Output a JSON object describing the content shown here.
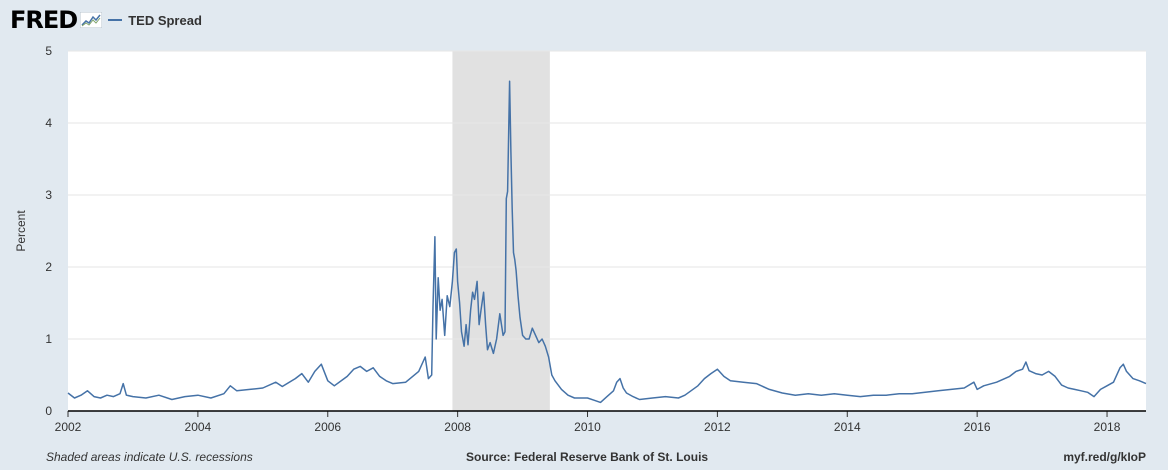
{
  "brand": {
    "name": "FRED",
    "icon": "chart-line-icon"
  },
  "legend": {
    "label": "TED Spread",
    "color": "#4572a7"
  },
  "footer": {
    "left": "Shaded areas indicate U.S. recessions",
    "center": "Source: Federal Reserve Bank of St. Louis",
    "right": "myf.red/g/kIoP"
  },
  "chart_data": {
    "type": "line",
    "ylabel": "Percent",
    "xlim": [
      2002.0,
      2018.6
    ],
    "ylim": [
      0,
      5
    ],
    "xticks": [
      "2002",
      "2004",
      "2006",
      "2008",
      "2010",
      "2012",
      "2014",
      "2016",
      "2018"
    ],
    "yticks": [
      "0",
      "1",
      "2",
      "3",
      "4",
      "5"
    ],
    "grid": true,
    "recessions": [
      [
        2007.92,
        2009.42
      ]
    ],
    "series": [
      {
        "name": "TED Spread",
        "color": "#4572a7",
        "points": [
          [
            2002.0,
            0.25
          ],
          [
            2002.1,
            0.18
          ],
          [
            2002.2,
            0.22
          ],
          [
            2002.3,
            0.28
          ],
          [
            2002.4,
            0.2
          ],
          [
            2002.5,
            0.18
          ],
          [
            2002.6,
            0.22
          ],
          [
            2002.7,
            0.2
          ],
          [
            2002.8,
            0.24
          ],
          [
            2002.85,
            0.38
          ],
          [
            2002.9,
            0.22
          ],
          [
            2003.0,
            0.2
          ],
          [
            2003.2,
            0.18
          ],
          [
            2003.4,
            0.22
          ],
          [
            2003.6,
            0.16
          ],
          [
            2003.8,
            0.2
          ],
          [
            2004.0,
            0.22
          ],
          [
            2004.2,
            0.18
          ],
          [
            2004.4,
            0.24
          ],
          [
            2004.5,
            0.35
          ],
          [
            2004.6,
            0.28
          ],
          [
            2004.8,
            0.3
          ],
          [
            2005.0,
            0.32
          ],
          [
            2005.2,
            0.4
          ],
          [
            2005.3,
            0.34
          ],
          [
            2005.5,
            0.45
          ],
          [
            2005.6,
            0.52
          ],
          [
            2005.7,
            0.4
          ],
          [
            2005.8,
            0.55
          ],
          [
            2005.9,
            0.65
          ],
          [
            2006.0,
            0.42
          ],
          [
            2006.1,
            0.35
          ],
          [
            2006.3,
            0.48
          ],
          [
            2006.4,
            0.58
          ],
          [
            2006.5,
            0.62
          ],
          [
            2006.6,
            0.55
          ],
          [
            2006.7,
            0.6
          ],
          [
            2006.8,
            0.48
          ],
          [
            2006.9,
            0.42
          ],
          [
            2007.0,
            0.38
          ],
          [
            2007.2,
            0.4
          ],
          [
            2007.4,
            0.55
          ],
          [
            2007.5,
            0.75
          ],
          [
            2007.55,
            0.45
          ],
          [
            2007.6,
            0.5
          ],
          [
            2007.62,
            1.45
          ],
          [
            2007.65,
            2.42
          ],
          [
            2007.67,
            1.0
          ],
          [
            2007.7,
            1.85
          ],
          [
            2007.73,
            1.4
          ],
          [
            2007.76,
            1.55
          ],
          [
            2007.8,
            1.05
          ],
          [
            2007.84,
            1.6
          ],
          [
            2007.88,
            1.45
          ],
          [
            2007.92,
            1.8
          ],
          [
            2007.95,
            2.2
          ],
          [
            2007.98,
            2.25
          ],
          [
            2008.0,
            1.8
          ],
          [
            2008.03,
            1.5
          ],
          [
            2008.06,
            1.1
          ],
          [
            2008.1,
            0.9
          ],
          [
            2008.13,
            1.2
          ],
          [
            2008.16,
            0.92
          ],
          [
            2008.2,
            1.4
          ],
          [
            2008.23,
            1.65
          ],
          [
            2008.26,
            1.55
          ],
          [
            2008.3,
            1.8
          ],
          [
            2008.33,
            1.2
          ],
          [
            2008.36,
            1.4
          ],
          [
            2008.4,
            1.65
          ],
          [
            2008.43,
            1.2
          ],
          [
            2008.46,
            0.85
          ],
          [
            2008.5,
            0.95
          ],
          [
            2008.55,
            0.8
          ],
          [
            2008.6,
            1.0
          ],
          [
            2008.65,
            1.35
          ],
          [
            2008.7,
            1.05
          ],
          [
            2008.73,
            1.1
          ],
          [
            2008.75,
            2.95
          ],
          [
            2008.77,
            3.05
          ],
          [
            2008.8,
            4.58
          ],
          [
            2008.82,
            3.6
          ],
          [
            2008.84,
            2.8
          ],
          [
            2008.86,
            2.2
          ],
          [
            2008.88,
            2.1
          ],
          [
            2008.9,
            1.95
          ],
          [
            2008.93,
            1.6
          ],
          [
            2008.96,
            1.3
          ],
          [
            2009.0,
            1.05
          ],
          [
            2009.05,
            1.0
          ],
          [
            2009.1,
            1.0
          ],
          [
            2009.15,
            1.15
          ],
          [
            2009.2,
            1.05
          ],
          [
            2009.25,
            0.95
          ],
          [
            2009.3,
            1.0
          ],
          [
            2009.35,
            0.9
          ],
          [
            2009.4,
            0.75
          ],
          [
            2009.45,
            0.5
          ],
          [
            2009.5,
            0.42
          ],
          [
            2009.6,
            0.3
          ],
          [
            2009.7,
            0.22
          ],
          [
            2009.8,
            0.18
          ],
          [
            2010.0,
            0.18
          ],
          [
            2010.1,
            0.15
          ],
          [
            2010.2,
            0.12
          ],
          [
            2010.3,
            0.2
          ],
          [
            2010.4,
            0.28
          ],
          [
            2010.45,
            0.4
          ],
          [
            2010.5,
            0.45
          ],
          [
            2010.55,
            0.32
          ],
          [
            2010.6,
            0.25
          ],
          [
            2010.7,
            0.2
          ],
          [
            2010.8,
            0.16
          ],
          [
            2011.0,
            0.18
          ],
          [
            2011.2,
            0.2
          ],
          [
            2011.4,
            0.18
          ],
          [
            2011.5,
            0.22
          ],
          [
            2011.7,
            0.35
          ],
          [
            2011.8,
            0.45
          ],
          [
            2011.9,
            0.52
          ],
          [
            2012.0,
            0.58
          ],
          [
            2012.1,
            0.48
          ],
          [
            2012.2,
            0.42
          ],
          [
            2012.4,
            0.4
          ],
          [
            2012.6,
            0.38
          ],
          [
            2012.8,
            0.3
          ],
          [
            2013.0,
            0.25
          ],
          [
            2013.2,
            0.22
          ],
          [
            2013.4,
            0.24
          ],
          [
            2013.6,
            0.22
          ],
          [
            2013.8,
            0.24
          ],
          [
            2014.0,
            0.22
          ],
          [
            2014.2,
            0.2
          ],
          [
            2014.4,
            0.22
          ],
          [
            2014.6,
            0.22
          ],
          [
            2014.8,
            0.24
          ],
          [
            2015.0,
            0.24
          ],
          [
            2015.2,
            0.26
          ],
          [
            2015.4,
            0.28
          ],
          [
            2015.6,
            0.3
          ],
          [
            2015.8,
            0.32
          ],
          [
            2015.95,
            0.4
          ],
          [
            2016.0,
            0.3
          ],
          [
            2016.1,
            0.35
          ],
          [
            2016.3,
            0.4
          ],
          [
            2016.5,
            0.48
          ],
          [
            2016.6,
            0.55
          ],
          [
            2016.7,
            0.58
          ],
          [
            2016.75,
            0.68
          ],
          [
            2016.8,
            0.56
          ],
          [
            2016.9,
            0.52
          ],
          [
            2017.0,
            0.5
          ],
          [
            2017.1,
            0.55
          ],
          [
            2017.2,
            0.48
          ],
          [
            2017.3,
            0.36
          ],
          [
            2017.4,
            0.32
          ],
          [
            2017.5,
            0.3
          ],
          [
            2017.6,
            0.28
          ],
          [
            2017.7,
            0.26
          ],
          [
            2017.8,
            0.2
          ],
          [
            2017.9,
            0.3
          ],
          [
            2018.0,
            0.35
          ],
          [
            2018.1,
            0.4
          ],
          [
            2018.2,
            0.6
          ],
          [
            2018.25,
            0.65
          ],
          [
            2018.3,
            0.55
          ],
          [
            2018.4,
            0.45
          ],
          [
            2018.5,
            0.42
          ],
          [
            2018.6,
            0.38
          ]
        ]
      }
    ]
  }
}
